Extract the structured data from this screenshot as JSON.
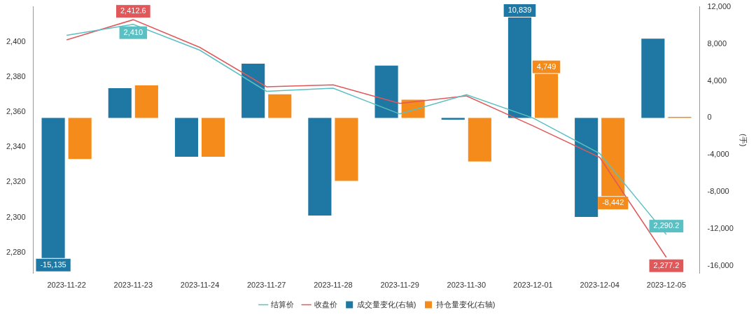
{
  "chart_data": {
    "type": "bar",
    "categories": [
      "2023-11-22",
      "2023-11-23",
      "2023-11-24",
      "2023-11-27",
      "2023-11-28",
      "2023-11-29",
      "2023-11-30",
      "2023-12-01",
      "2023-12-04",
      "2023-12-05"
    ],
    "series": [
      {
        "name": "成交量变化(右轴)",
        "type": "bar",
        "axis": "y2",
        "color": "#1f77a4",
        "values": [
          -15135,
          3200,
          -4200,
          5850,
          -10550,
          5650,
          -200,
          10839,
          -10700,
          8550
        ],
        "value_labels": [
          "-15,135",
          null,
          null,
          null,
          null,
          null,
          null,
          "10,839",
          null,
          null
        ]
      },
      {
        "name": "持仓量变化(右轴)",
        "type": "bar",
        "axis": "y2",
        "color": "#f58b1a",
        "values": [
          -4450,
          3500,
          -4200,
          2550,
          -6800,
          1950,
          -4700,
          4749,
          -8442,
          100
        ],
        "value_labels": [
          null,
          null,
          null,
          null,
          null,
          null,
          null,
          "4,749",
          "-8,442",
          null
        ]
      },
      {
        "name": "结算价",
        "type": "line",
        "axis": "y",
        "color": "#5bc0c3",
        "marker": "none",
        "values": [
          2403.7,
          2410,
          2395.2,
          2371.8,
          2373.6,
          2358.9,
          2369.9,
          2356.6,
          2336.4,
          2290.2
        ],
        "value_labels": [
          null,
          "2,410",
          null,
          null,
          null,
          null,
          null,
          null,
          null,
          "2,290.2"
        ]
      },
      {
        "name": "收盘价",
        "type": "line",
        "axis": "y",
        "color": "#e0585a",
        "marker": "none",
        "values": [
          2401.1,
          2412.6,
          2396.8,
          2374.4,
          2375.5,
          2364.9,
          2369.2,
          2352.1,
          2334.2,
          2277.2
        ],
        "value_labels": [
          null,
          "2,412.6",
          null,
          null,
          null,
          null,
          null,
          null,
          null,
          "2,277.2"
        ]
      }
    ],
    "ylim": [
      2268,
      2420
    ],
    "yticks": [
      {
        "value": 2280,
        "label": "2,280"
      },
      {
        "value": 2300,
        "label": "2,300"
      },
      {
        "value": 2320,
        "label": "2,320"
      },
      {
        "value": 2340,
        "label": "2,340"
      },
      {
        "value": 2360,
        "label": "2,360"
      },
      {
        "value": 2380,
        "label": "2,380"
      },
      {
        "value": 2400,
        "label": "2,400"
      }
    ],
    "y2lim": [
      -16800,
      12000
    ],
    "y2ticks": [
      {
        "value": -16000,
        "label": "-16,000"
      },
      {
        "value": -12000,
        "label": "-12,000"
      },
      {
        "value": -8000,
        "label": "-8,000"
      },
      {
        "value": -4000,
        "label": "-4,000"
      },
      0,
      {
        "value": 4000,
        "label": "4,000"
      },
      {
        "value": 8000,
        "label": "8,000"
      },
      {
        "value": 12000,
        "label": "12,000"
      }
    ],
    "y2_label": "(手)",
    "grid": false,
    "legend": "bottom",
    "data_labels": true
  }
}
